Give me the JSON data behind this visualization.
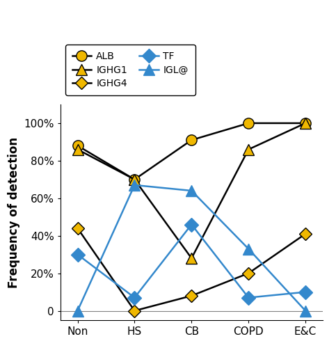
{
  "categories": [
    "Non",
    "HS",
    "CB",
    "COPD",
    "E&C"
  ],
  "series": [
    {
      "label": "ALB",
      "values": [
        88,
        70,
        91,
        100,
        100
      ],
      "markercolor": "#f0b800",
      "marker": "o",
      "linecolor": "black",
      "markersize": 11
    },
    {
      "label": "IGHG1",
      "values": [
        86,
        70,
        28,
        86,
        100
      ],
      "markercolor": "#f0b800",
      "marker": "^",
      "linecolor": "black",
      "markersize": 12
    },
    {
      "label": "IGHG4",
      "values": [
        44,
        0,
        8,
        20,
        41
      ],
      "markercolor": "#f0b800",
      "marker": "D",
      "linecolor": "black",
      "markersize": 9
    },
    {
      "label": "TF",
      "values": [
        30,
        7,
        46,
        7,
        10
      ],
      "markercolor": "#3388cc",
      "marker": "D",
      "linecolor": "#3388cc",
      "markersize": 10
    },
    {
      "label": "IGL@",
      "values": [
        0,
        67,
        64,
        33,
        0
      ],
      "markercolor": "#3388cc",
      "marker": "^",
      "linecolor": "#3388cc",
      "markersize": 12
    }
  ],
  "ylabel": "Frequency of detection",
  "yticks": [
    0,
    20,
    40,
    60,
    80,
    100
  ],
  "ytick_labels": [
    "0",
    "20%",
    "40%",
    "60%",
    "80%",
    "100%"
  ],
  "ylim": [
    -5,
    110
  ],
  "xlim": [
    -0.3,
    4.3
  ]
}
